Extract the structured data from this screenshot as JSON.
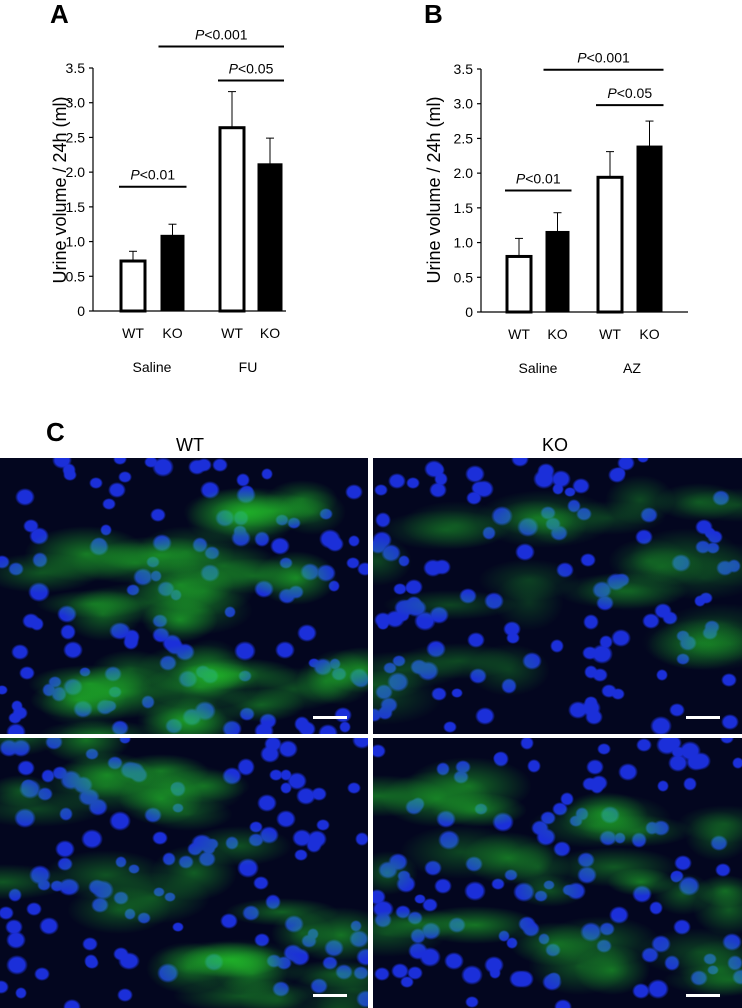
{
  "panel_letters": {
    "a": "A",
    "b": "B",
    "c": "C"
  },
  "chart_data": [
    {
      "type": "bar",
      "panel": "A",
      "ylabel": "Urine volume / 24h (ml)",
      "ylim": [
        0,
        3.5
      ],
      "yticks": [
        "0",
        "0.5",
        "1.0",
        "1.5",
        "2.0",
        "2.5",
        "3.0",
        "3.5"
      ],
      "categories": [
        "WT",
        "KO",
        "WT",
        "KO"
      ],
      "groups": [
        "Saline",
        "FU"
      ],
      "values": [
        0.72,
        1.09,
        2.64,
        2.12
      ],
      "errors": [
        0.14,
        0.16,
        0.52,
        0.37
      ],
      "fills": [
        "#ffffff",
        "#000000",
        "#ffffff",
        "#000000"
      ],
      "annotations": [
        {
          "prefix": "P",
          "text": "<0.01",
          "from": 0,
          "to": 1,
          "y": 1.79
        },
        {
          "prefix": "P",
          "text": "<0.05",
          "from": 2,
          "to": 3,
          "y": 3.32
        },
        {
          "prefix": "P",
          "text": "<0.001",
          "from": 1,
          "to": 3,
          "y": 3.81
        }
      ]
    },
    {
      "type": "bar",
      "panel": "B",
      "ylabel": "Urine volume / 24h (ml)",
      "ylim": [
        0,
        3.5
      ],
      "yticks": [
        "0",
        "0.5",
        "1.0",
        "1.5",
        "2.0",
        "2.5",
        "3.0",
        "3.5"
      ],
      "categories": [
        "WT",
        "KO",
        "WT",
        "KO"
      ],
      "groups": [
        "Saline",
        "AZ"
      ],
      "values": [
        0.8,
        1.16,
        1.94,
        2.39
      ],
      "errors": [
        0.26,
        0.27,
        0.37,
        0.36
      ],
      "fills": [
        "#ffffff",
        "#000000",
        "#ffffff",
        "#000000"
      ],
      "annotations": [
        {
          "prefix": "P",
          "text": "<0.01",
          "from": 0,
          "to": 1,
          "y": 1.75
        },
        {
          "prefix": "P",
          "text": "<0.05",
          "from": 2,
          "to": 3,
          "y": 2.98
        },
        {
          "prefix": "P",
          "text": "<0.001",
          "from": 1,
          "to": 3,
          "y": 3.49
        }
      ]
    }
  ],
  "micrographs": {
    "col_labels": [
      "WT",
      "KO"
    ],
    "nucleus_color": "#1b2fd9",
    "membrane_color": "#25d42a",
    "background_color": "#03061f"
  }
}
